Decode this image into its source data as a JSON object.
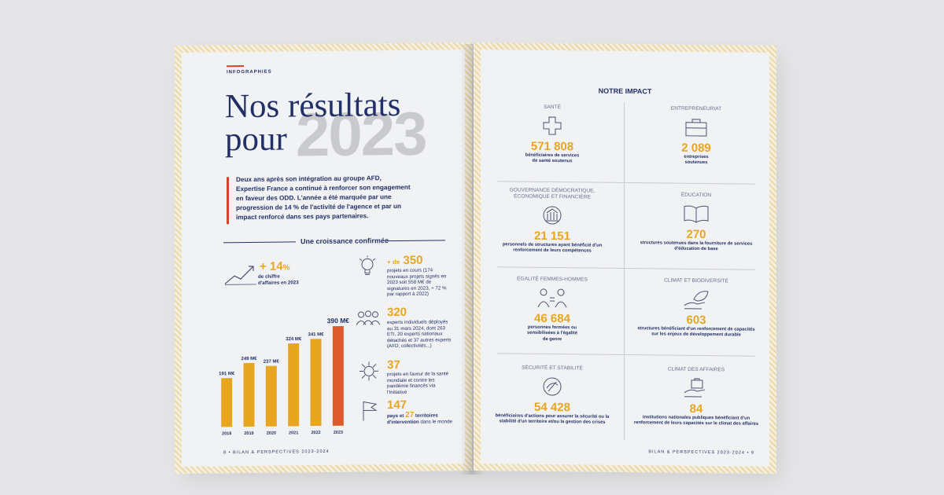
{
  "left_page": {
    "kicker": "INFOGRAPHIES",
    "title_line1": "Nos résultats",
    "title_line2": "pour",
    "big_year": "2023",
    "intro": "Deux ans après son intégration au groupe AFD, Expertise France a continué à renforcer son engagement en faveur des ODD. L'année a été marquée par une progression de 14 % de l'activité de l'agence et par un impact renforcé dans ses pays partenaires.",
    "section_title": "Une croissance confirmée",
    "growth": {
      "value": "+ 14",
      "unit": "%",
      "label": "de chiffre d'affaires en 2023"
    },
    "stats": [
      {
        "prefix": "+ de",
        "value": "350",
        "text": "projets en cours (174 nouveaux projets signés en 2023 soit 558 M€ de signatures en 2023, + 72 % par rapport à 2022)",
        "icon": "lightbulb-icon"
      },
      {
        "prefix": "",
        "value": "320",
        "text": "experts individuels déployés au 31 mars 2024, dont 263 ETI, 20 experts nationaux détachés et 37 autres experts (AFD, collectivités...)",
        "icon": "people-icon"
      },
      {
        "prefix": "",
        "value": "37",
        "text": "projets en faveur de la santé mondiale et contre les pandémie financés via l'Initiative",
        "icon": "virus-icon"
      },
      {
        "prefix": "",
        "value": "147",
        "value2": "27",
        "mid": "pays et",
        "after": "territoires d'intervention",
        "text": "dans le monde",
        "icon": "flag-icon"
      }
    ],
    "footer": "8 • BILAN & PERSPECTIVES 2023-2024"
  },
  "chart_data": {
    "type": "bar",
    "categories": [
      "2018",
      "2019",
      "2020",
      "2021",
      "2022",
      "2023"
    ],
    "values": [
      191,
      249,
      237,
      324,
      341,
      390
    ],
    "value_labels": [
      "191 M€",
      "249 M€",
      "237 M€",
      "324 M€",
      "341 M€",
      "390 M€"
    ],
    "ylim": [
      0,
      400
    ],
    "colors": [
      "#e8a520",
      "#e8a520",
      "#e8a520",
      "#e8a520",
      "#e8a520",
      "#de5a2c"
    ],
    "grid": false
  },
  "right_page": {
    "title": "NOTRE IMPACT",
    "cells": [
      {
        "category": "SANTÉ",
        "value": "571 808",
        "desc": "bénéficiaires de services de santé soutenus",
        "icon": "health-cross-icon"
      },
      {
        "category": "ENTREPRENEURIAT",
        "value": "2 089",
        "desc": "entreprises soutenues",
        "icon": "briefcase-icon"
      },
      {
        "category": "GOUVERNANCE DÉMOCRATIQUE, ÉCONOMIQUE ET FINANCIÈRE",
        "value": "21 151",
        "desc": "personnels de structures ayant bénéficié d'un renforcement de leurs compétences",
        "icon": "governance-icon"
      },
      {
        "category": "ÉDUCATION",
        "value": "270",
        "desc": "structures soutenues dans la fourniture de services d'éducation de base",
        "icon": "book-icon"
      },
      {
        "category": "ÉGALITÉ FEMMES-HOMMES",
        "value": "46 684",
        "desc": "personnes formées ou sensibilisées à l'égalité de genre",
        "icon": "equality-icon"
      },
      {
        "category": "CLIMAT ET BIODIVERSITÉ",
        "value": "603",
        "desc": "structures bénéficiant d'un renforcement de capacités sur les enjeux de développement durable",
        "icon": "leaf-hand-icon"
      },
      {
        "category": "SÉCURITÉ ET STABILITÉ",
        "value": "54 428",
        "desc": "bénéficiaires d'actions pour assurer la sécurité ou la stabilité d'un territoire et/ou la gestion des crises",
        "icon": "security-icon"
      },
      {
        "category": "CLIMAT DES AFFAIRES",
        "value": "84",
        "desc": "institutions nationales publiques bénéficiant d'un renforcement de leurs capacités sur le climat des affaires",
        "icon": "hand-briefcase-icon"
      }
    ],
    "footer": "BILAN & PERSPECTIVES 2023-2024 • 9"
  }
}
